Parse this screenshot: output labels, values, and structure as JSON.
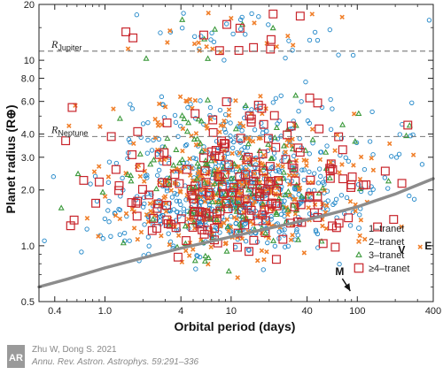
{
  "chart_data": {
    "type": "scatter",
    "title": "",
    "xlabel": "Orbital period (days)",
    "ylabel": "Planet radius (R⊕)",
    "xscale": "log",
    "yscale": "log",
    "xlim": [
      0.3,
      400
    ],
    "ylim": [
      0.5,
      20
    ],
    "xticks": [
      0.4,
      1.0,
      4,
      10,
      40,
      100,
      400
    ],
    "xtick_labels": [
      "0.4",
      "1.0",
      "4",
      "10",
      "40",
      "100",
      "400"
    ],
    "yticks": [
      0.5,
      1.0,
      2.0,
      3.0,
      4.0,
      6.0,
      8.0,
      10,
      20
    ],
    "ytick_labels": [
      "0.5",
      "1.0",
      "2.0",
      "3.0",
      "4.0",
      "6.0",
      "8.0",
      "10",
      "20"
    ],
    "grid": false,
    "legend_position": "bottom-right",
    "reference_lines": [
      {
        "label_main": "R",
        "label_sub": "Jupiter",
        "y": 11.2
      },
      {
        "label_main": "R",
        "label_sub": "Neptune",
        "y": 3.88
      }
    ],
    "annotations": [
      {
        "text": "M",
        "x": 88,
        "y": 0.57,
        "arrow": true
      },
      {
        "text": "V",
        "x": 225,
        "y": 0.95
      },
      {
        "text": "E",
        "x": 365,
        "y": 1.0
      }
    ],
    "trend_curve": {
      "x": [
        0.3,
        0.5,
        1,
        2,
        4,
        8,
        15,
        30,
        60,
        100,
        200,
        400
      ],
      "y": [
        0.6,
        0.66,
        0.76,
        0.86,
        0.97,
        1.08,
        1.19,
        1.32,
        1.48,
        1.62,
        1.9,
        2.3
      ]
    },
    "series": [
      {
        "name": "1–tranet",
        "marker": "circle",
        "color": "#1f86c8",
        "count": 700
      },
      {
        "name": "2–tranet",
        "marker": "x",
        "color": "#f07f2a",
        "count": 380
      },
      {
        "name": "3–tranet",
        "marker": "triangle",
        "color": "#3c9a3c",
        "count": 170
      },
      {
        "name": "≥4–tranet",
        "marker": "square",
        "color": "#c8242b",
        "count": 210
      }
    ]
  },
  "credit": {
    "logo_text": "AR",
    "authors": "Zhu W, Dong S. 2021",
    "citation": "Annu. Rev. Astron. Astrophys. 59:291–336"
  }
}
